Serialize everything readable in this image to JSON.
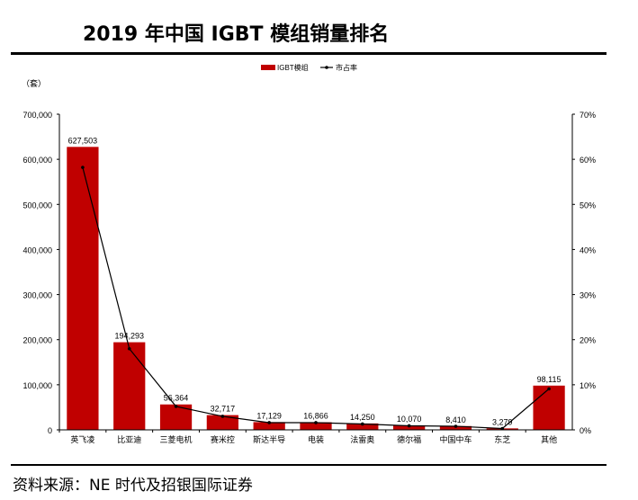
{
  "title": "2019 年中国 IGBT 模组销量排名",
  "footer": "资料来源：NE 时代及招银国际证券",
  "chart_data": {
    "type": "bar+line",
    "unit_label": "（套）",
    "categories": [
      "英飞凌",
      "比亚迪",
      "三菱电机",
      "赛米控",
      "斯达半导",
      "电装",
      "法雷奥",
      "德尔福",
      "中国中车",
      "东芝",
      "其他"
    ],
    "series": [
      {
        "name": "IGBT模组",
        "type": "bar",
        "axis": "left",
        "color": "#c00000",
        "values": [
          627503,
          194293,
          56364,
          32717,
          17129,
          16866,
          14250,
          10070,
          8410,
          3279,
          98115
        ],
        "labels": [
          "627,503",
          "194,293",
          "56,364",
          "32,717",
          "17,129",
          "16,866",
          "14,250",
          "10,070",
          "8,410",
          "3,279",
          "98,115"
        ]
      },
      {
        "name": "市占率",
        "type": "line",
        "axis": "right",
        "color": "#000000",
        "values": [
          58.2,
          18.0,
          5.2,
          3.0,
          1.6,
          1.6,
          1.3,
          0.9,
          0.8,
          0.3,
          9.1
        ]
      }
    ],
    "y_left": {
      "min": 0,
      "max": 700000,
      "ticks": [
        "0",
        "100,000",
        "200,000",
        "300,000",
        "400,000",
        "500,000",
        "600,000",
        "700,000"
      ]
    },
    "y_right": {
      "min": 0,
      "max": 70,
      "ticks": [
        "0%",
        "10%",
        "20%",
        "30%",
        "40%",
        "50%",
        "60%",
        "70%"
      ]
    },
    "legend": "top-center"
  }
}
